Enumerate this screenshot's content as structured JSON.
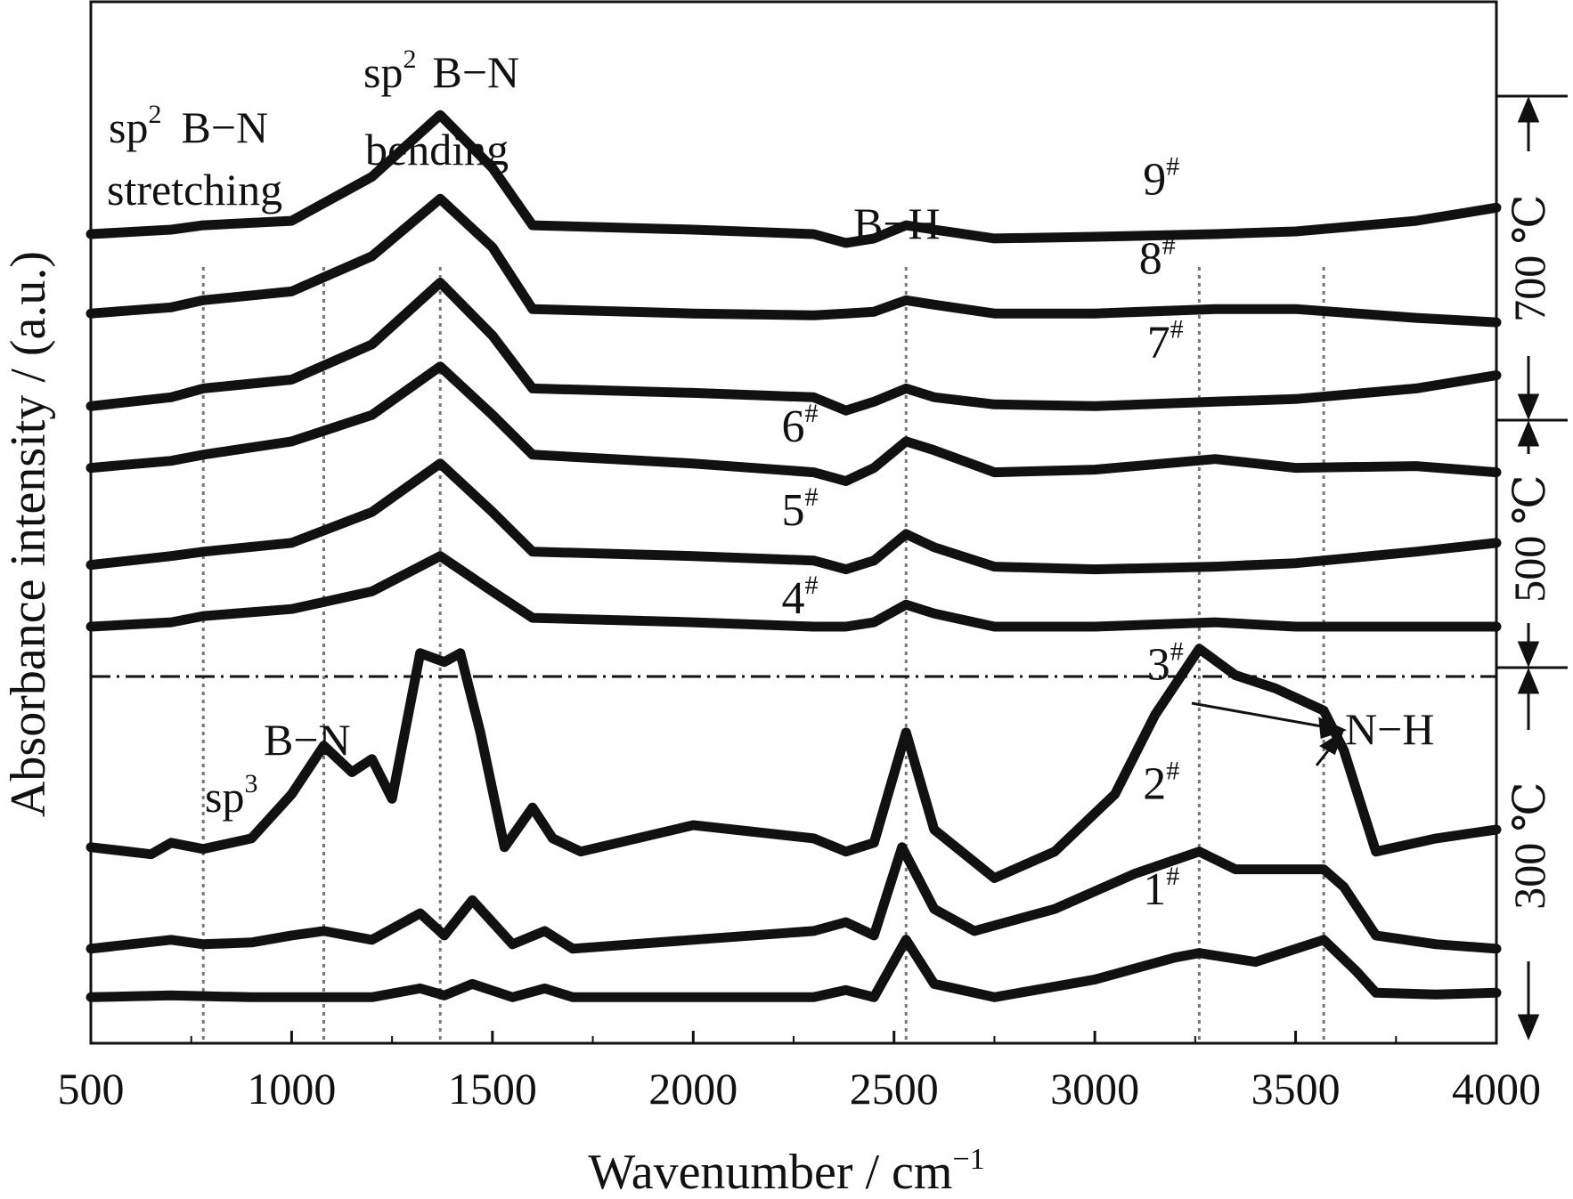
{
  "chart_data": {
    "type": "line",
    "xlabel": "Wavenumber / cm⁻¹",
    "ylabel": "Absorbance intensity / (a.u.)",
    "xlim": [
      500,
      4000
    ],
    "x_ticks": [
      "500",
      "1000",
      "1500",
      "2000",
      "2500",
      "3000",
      "3500",
      "4000"
    ],
    "reference_lines": [
      780,
      1080,
      1370,
      2530,
      3260,
      3570
    ],
    "annotations": [
      {
        "text": "sp² B–N stretching",
        "x": 780
      },
      {
        "text": "sp² B–N bending",
        "x": 1370
      },
      {
        "text": "B–H",
        "x": 2530
      },
      {
        "text": "sp³ B–N",
        "x": 1080
      },
      {
        "text": "N–H",
        "x": 3570
      }
    ],
    "temperature_groups": [
      {
        "label": "700 ℃",
        "series": [
          "7#",
          "8#",
          "9#"
        ]
      },
      {
        "label": "500 ℃",
        "series": [
          "4#",
          "5#",
          "6#"
        ]
      },
      {
        "label": "300 ℃",
        "series": [
          "1#",
          "2#",
          "3#"
        ]
      }
    ],
    "series": [
      {
        "name": "9#",
        "x": [
          500,
          700,
          780,
          1000,
          1200,
          1370,
          1500,
          1600,
          2000,
          2300,
          2380,
          2450,
          2530,
          2600,
          2750,
          3000,
          3300,
          3500,
          3800,
          4000
        ],
        "y": [
          8.95,
          9.0,
          9.05,
          9.1,
          9.6,
          10.3,
          9.7,
          9.05,
          9.0,
          8.95,
          8.85,
          8.9,
          9.05,
          9.0,
          8.9,
          8.92,
          8.95,
          8.98,
          9.1,
          9.25
        ]
      },
      {
        "name": "8#",
        "x": [
          500,
          700,
          780,
          1000,
          1200,
          1370,
          1500,
          1600,
          2000,
          2300,
          2380,
          2450,
          2530,
          2600,
          2750,
          3000,
          3300,
          3500,
          3800,
          4000
        ],
        "y": [
          8.05,
          8.12,
          8.2,
          8.3,
          8.7,
          9.35,
          8.8,
          8.1,
          8.05,
          8.03,
          8.05,
          8.07,
          8.2,
          8.15,
          8.05,
          8.05,
          8.1,
          8.1,
          8.0,
          7.95
        ]
      },
      {
        "name": "7#",
        "x": [
          500,
          700,
          780,
          1000,
          1200,
          1370,
          1500,
          1600,
          2000,
          2300,
          2380,
          2450,
          2530,
          2600,
          2750,
          3000,
          3300,
          3500,
          3800,
          4000
        ],
        "y": [
          7.0,
          7.1,
          7.2,
          7.3,
          7.7,
          8.4,
          7.8,
          7.2,
          7.15,
          7.1,
          6.95,
          7.05,
          7.2,
          7.1,
          7.02,
          7.0,
          7.05,
          7.08,
          7.2,
          7.35
        ]
      },
      {
        "name": "6#",
        "x": [
          500,
          700,
          780,
          1000,
          1200,
          1370,
          1500,
          1600,
          2000,
          2300,
          2380,
          2450,
          2530,
          2600,
          2750,
          3000,
          3300,
          3500,
          3800,
          4000
        ],
        "y": [
          6.3,
          6.38,
          6.45,
          6.6,
          6.9,
          7.45,
          6.9,
          6.45,
          6.35,
          6.25,
          6.15,
          6.3,
          6.6,
          6.5,
          6.25,
          6.28,
          6.4,
          6.3,
          6.32,
          6.25
        ]
      },
      {
        "name": "5#",
        "x": [
          500,
          700,
          780,
          1000,
          1200,
          1370,
          1500,
          1600,
          2000,
          2300,
          2380,
          2450,
          2530,
          2600,
          2750,
          3000,
          3300,
          3500,
          3800,
          4000
        ],
        "y": [
          5.2,
          5.3,
          5.35,
          5.45,
          5.8,
          6.35,
          5.8,
          5.35,
          5.3,
          5.25,
          5.15,
          5.25,
          5.55,
          5.4,
          5.18,
          5.15,
          5.18,
          5.22,
          5.35,
          5.45
        ]
      },
      {
        "name": "4#",
        "x": [
          500,
          700,
          780,
          1000,
          1200,
          1370,
          1500,
          1600,
          2000,
          2300,
          2380,
          2450,
          2530,
          2600,
          2750,
          3000,
          3300,
          3500,
          3800,
          4000
        ],
        "y": [
          4.5,
          4.55,
          4.62,
          4.7,
          4.9,
          5.3,
          4.9,
          4.6,
          4.55,
          4.5,
          4.5,
          4.55,
          4.75,
          4.65,
          4.5,
          4.5,
          4.55,
          4.5,
          4.5,
          4.5
        ]
      },
      {
        "name": "3#",
        "x": [
          500,
          650,
          700,
          780,
          900,
          1000,
          1080,
          1150,
          1200,
          1250,
          1320,
          1380,
          1420,
          1470,
          1530,
          1600,
          1650,
          1720,
          2000,
          2300,
          2380,
          2450,
          2530,
          2600,
          2750,
          2900,
          3050,
          3150,
          3260,
          3350,
          3450,
          3570,
          3620,
          3700,
          3850,
          4000
        ],
        "y": [
          2.0,
          1.92,
          2.05,
          1.98,
          2.1,
          2.6,
          3.15,
          2.85,
          3.0,
          2.55,
          4.2,
          4.1,
          4.2,
          3.3,
          2.0,
          2.45,
          2.1,
          1.95,
          2.25,
          2.1,
          1.95,
          2.05,
          3.3,
          2.2,
          1.65,
          1.95,
          2.6,
          3.5,
          4.25,
          3.95,
          3.8,
          3.55,
          3.1,
          1.95,
          2.1,
          2.2
        ]
      },
      {
        "name": "2#",
        "x": [
          500,
          700,
          780,
          900,
          1000,
          1080,
          1200,
          1320,
          1380,
          1450,
          1550,
          1630,
          1700,
          2000,
          2300,
          2380,
          2450,
          2520,
          2600,
          2700,
          2900,
          3100,
          3260,
          3350,
          3450,
          3570,
          3620,
          3700,
          3850,
          4000
        ],
        "y": [
          0.85,
          0.95,
          0.9,
          0.92,
          1.0,
          1.05,
          0.95,
          1.25,
          1.0,
          1.4,
          0.9,
          1.05,
          0.85,
          0.95,
          1.05,
          1.15,
          1.0,
          2.0,
          1.3,
          1.05,
          1.3,
          1.7,
          1.95,
          1.75,
          1.75,
          1.75,
          1.55,
          1.0,
          0.9,
          0.85
        ]
      },
      {
        "name": "1#",
        "x": [
          500,
          700,
          900,
          1000,
          1200,
          1320,
          1380,
          1450,
          1550,
          1630,
          1700,
          2000,
          2300,
          2380,
          2450,
          2530,
          2600,
          2750,
          3000,
          3200,
          3260,
          3400,
          3570,
          3650,
          3700,
          3850,
          4000
        ],
        "y": [
          0.3,
          0.32,
          0.3,
          0.3,
          0.3,
          0.4,
          0.32,
          0.45,
          0.3,
          0.4,
          0.3,
          0.3,
          0.3,
          0.38,
          0.3,
          0.95,
          0.45,
          0.3,
          0.5,
          0.75,
          0.8,
          0.7,
          0.95,
          0.6,
          0.35,
          0.33,
          0.35
        ]
      }
    ],
    "series_labels": [
      {
        "name": "9#",
        "x": 3120,
        "y": 9.4
      },
      {
        "name": "8#",
        "x": 3110,
        "y": 8.5
      },
      {
        "name": "7#",
        "x": 3130,
        "y": 7.55
      },
      {
        "name": "6#",
        "x": 2220,
        "y": 6.6
      },
      {
        "name": "5#",
        "x": 2220,
        "y": 5.65
      },
      {
        "name": "4#",
        "x": 2220,
        "y": 4.65
      },
      {
        "name": "3#",
        "x": 3130,
        "y": 3.9
      },
      {
        "name": "2#",
        "x": 3120,
        "y": 2.55
      },
      {
        "name": "1#",
        "x": 3120,
        "y": 1.35
      }
    ]
  },
  "labels": {
    "xlabel_main": "Wavenumber / cm",
    "xlabel_sup": "−1",
    "ylabel": "Absorbance intensity / (a.u.)",
    "stretch_sp": "sp",
    "stretch_sup": "2",
    "stretch_bn": "B−N",
    "stretch_word": "stretching",
    "bend_sp": "sp",
    "bend_sup": "2",
    "bend_bn": "B−N",
    "bend_word": "bending",
    "bh": "B−H",
    "sp3_sp": "sp",
    "sp3_sup": "3",
    "sp3_bn": "B−N",
    "nh": "N−H",
    "temp_700": "700 ℃",
    "temp_500": "500 ℃",
    "temp_300": "300 ℃"
  }
}
